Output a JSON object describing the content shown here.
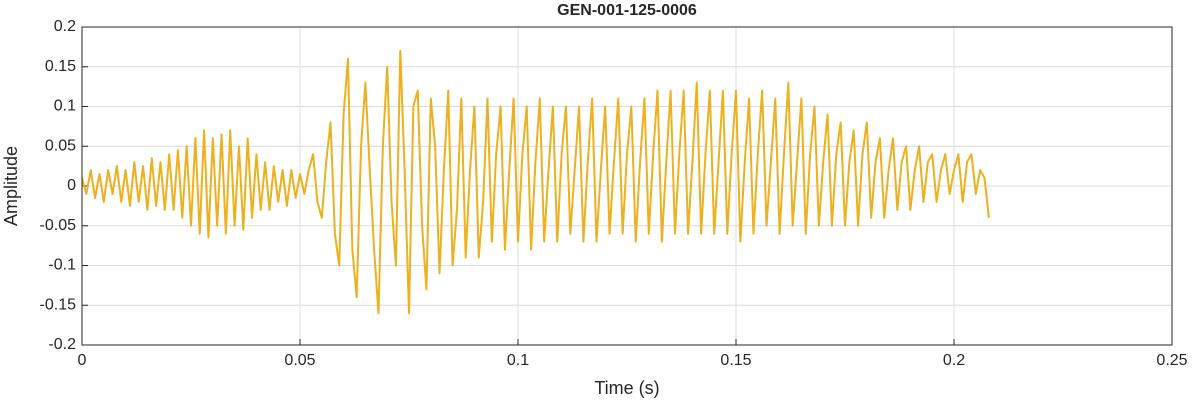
{
  "chart_data": {
    "type": "line",
    "title": "GEN-001-125-0006",
    "x_label": "Time (s)",
    "y_label": "Amplitude",
    "x": [
      0,
      0.001,
      0.002,
      0.003,
      0.004,
      0.005,
      0.006,
      0.007,
      0.008,
      0.009,
      0.01,
      0.011,
      0.012,
      0.013,
      0.014,
      0.015,
      0.016,
      0.017,
      0.018,
      0.019,
      0.02,
      0.021,
      0.022,
      0.023,
      0.024,
      0.025,
      0.026,
      0.027,
      0.028,
      0.029,
      0.03,
      0.031,
      0.032,
      0.033,
      0.034,
      0.035,
      0.036,
      0.037,
      0.038,
      0.039,
      0.04,
      0.041,
      0.042,
      0.043,
      0.044,
      0.045,
      0.046,
      0.047,
      0.048,
      0.049,
      0.05,
      0.051,
      0.052,
      0.053,
      0.054,
      0.055,
      0.056,
      0.057,
      0.058,
      0.059,
      0.06,
      0.061,
      0.062,
      0.063,
      0.064,
      0.065,
      0.066,
      0.067,
      0.068,
      0.069,
      0.07,
      0.071,
      0.072,
      0.073,
      0.074,
      0.075,
      0.076,
      0.077,
      0.078,
      0.079,
      0.08,
      0.081,
      0.082,
      0.083,
      0.084,
      0.085,
      0.086,
      0.087,
      0.088,
      0.089,
      0.09,
      0.091,
      0.092,
      0.093,
      0.094,
      0.095,
      0.096,
      0.097,
      0.098,
      0.099,
      0.1,
      0.101,
      0.102,
      0.103,
      0.104,
      0.105,
      0.106,
      0.107,
      0.108,
      0.109,
      0.11,
      0.111,
      0.112,
      0.113,
      0.114,
      0.115,
      0.116,
      0.117,
      0.118,
      0.119,
      0.12,
      0.121,
      0.122,
      0.123,
      0.124,
      0.125,
      0.126,
      0.127,
      0.128,
      0.129,
      0.13,
      0.131,
      0.132,
      0.133,
      0.134,
      0.135,
      0.136,
      0.137,
      0.138,
      0.139,
      0.14,
      0.141,
      0.142,
      0.143,
      0.144,
      0.145,
      0.146,
      0.147,
      0.148,
      0.149,
      0.15,
      0.151,
      0.152,
      0.153,
      0.154,
      0.155,
      0.156,
      0.157,
      0.158,
      0.159,
      0.16,
      0.161,
      0.162,
      0.163,
      0.164,
      0.165,
      0.166,
      0.167,
      0.168,
      0.169,
      0.17,
      0.171,
      0.172,
      0.173,
      0.174,
      0.175,
      0.176,
      0.177,
      0.178,
      0.179,
      0.18,
      0.181,
      0.182,
      0.183,
      0.184,
      0.185,
      0.186,
      0.187,
      0.188,
      0.189,
      0.19,
      0.191,
      0.192,
      0.193,
      0.194,
      0.195,
      0.196,
      0.197,
      0.198,
      0.199,
      0.2,
      0.201,
      0.202,
      0.203,
      0.204,
      0.205,
      0.206,
      0.207,
      0.208
    ],
    "values": [
      0.01,
      -0.01,
      0.02,
      -0.015,
      0.015,
      -0.02,
      0.02,
      -0.01,
      0.025,
      -0.02,
      0.02,
      -0.025,
      0.03,
      -0.02,
      0.025,
      -0.03,
      0.035,
      -0.025,
      0.03,
      -0.03,
      0.04,
      -0.03,
      0.045,
      -0.04,
      0.05,
      -0.05,
      0.06,
      -0.06,
      0.07,
      -0.065,
      0.06,
      -0.05,
      0.065,
      -0.06,
      0.07,
      -0.05,
      0.05,
      -0.055,
      0.06,
      -0.04,
      0.04,
      -0.03,
      0.03,
      -0.03,
      0.025,
      -0.02,
      0.02,
      -0.025,
      0.02,
      -0.015,
      0.015,
      -0.01,
      0.02,
      0.04,
      -0.02,
      -0.04,
      0.03,
      0.08,
      -0.06,
      -0.1,
      0.09,
      0.16,
      -0.08,
      -0.14,
      0.05,
      0.13,
      0.02,
      -0.08,
      -0.16,
      0.05,
      0.15,
      -0.02,
      -0.1,
      0.17,
      0.02,
      -0.16,
      0.1,
      0.12,
      -0.05,
      -0.13,
      0.11,
      0.05,
      -0.11,
      0.02,
      0.12,
      -0.1,
      -0.03,
      0.11,
      -0.09,
      0.02,
      0.1,
      -0.09,
      -0.02,
      0.11,
      -0.07,
      0.04,
      0.1,
      -0.08,
      0.02,
      0.11,
      -0.07,
      0.04,
      0.1,
      -0.08,
      0.03,
      0.11,
      -0.07,
      0.02,
      0.1,
      -0.07,
      0.04,
      0.1,
      -0.06,
      0.02,
      0.1,
      -0.07,
      0.03,
      0.11,
      -0.07,
      0.02,
      0.1,
      -0.06,
      0.03,
      0.11,
      -0.06,
      0.04,
      0.1,
      -0.07,
      0.03,
      0.11,
      -0.06,
      0.04,
      0.12,
      -0.07,
      0.03,
      0.12,
      -0.06,
      0.04,
      0.12,
      -0.06,
      0.03,
      0.13,
      -0.06,
      0.04,
      0.12,
      -0.06,
      0.03,
      0.12,
      -0.06,
      0.04,
      0.12,
      -0.07,
      0.03,
      0.11,
      -0.06,
      0.04,
      0.12,
      -0.05,
      0.03,
      0.11,
      -0.06,
      0.04,
      0.13,
      -0.05,
      0.03,
      0.11,
      -0.06,
      0.04,
      0.1,
      -0.05,
      0.03,
      0.09,
      -0.05,
      0.04,
      0.08,
      -0.05,
      0.03,
      0.07,
      -0.05,
      0.04,
      0.08,
      -0.04,
      0.03,
      0.06,
      -0.04,
      0.02,
      0.06,
      -0.03,
      0.03,
      0.05,
      -0.03,
      0.02,
      0.05,
      -0.02,
      0.03,
      0.04,
      -0.02,
      0.02,
      0.04,
      -0.01,
      0.02,
      0.04,
      -0.02,
      0.03,
      0.04,
      -0.01,
      0.02,
      0.01,
      -0.04
    ],
    "color": "#EDB120",
    "xlim": [
      0,
      0.25
    ],
    "xticks": [
      0,
      0.05,
      0.1,
      0.15,
      0.2,
      0.25
    ],
    "ylim": [
      -0.2,
      0.2
    ],
    "yticks": [
      -0.2,
      -0.15,
      -0.1,
      -0.05,
      0,
      0.05,
      0.1,
      0.15,
      0.2
    ],
    "grid": true
  }
}
